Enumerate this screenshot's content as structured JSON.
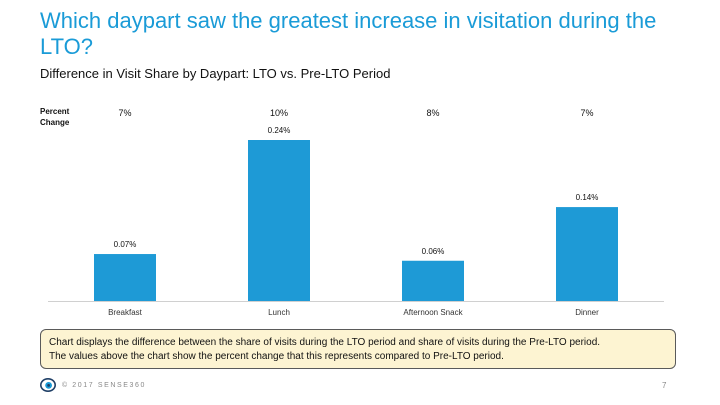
{
  "slide": {
    "title": "Which daypart saw the greatest increase in visitation during the LTO?",
    "subtitle": "Difference in Visit Share by Daypart: LTO vs. Pre-LTO Period",
    "percent_change_label_line1": "Percent",
    "percent_change_label_line2": "Change",
    "note_line1": "Chart displays the difference between the share of visits during the LTO period and share of visits during the Pre-LTO period.",
    "note_line2": "The values above the chart show the percent change that this represents compared to Pre-LTO period.",
    "copyright": "© 2017 SENSE360",
    "page_number": "7",
    "logo_icon": "sense360-eye-icon"
  },
  "colors": {
    "title": "#1a9bd7",
    "bar": "#1e9ad6",
    "note_bg": "#fdf4d2",
    "axis": "#d0d0d0"
  },
  "chart_data": {
    "type": "bar",
    "categories": [
      "Breakfast",
      "Lunch",
      "Afternoon Snack",
      "Dinner"
    ],
    "values": [
      0.07,
      0.24,
      0.06,
      0.14
    ],
    "value_labels": [
      "0.07%",
      "0.24%",
      "0.06%",
      "0.14%"
    ],
    "percent_change": [
      "7%",
      "10%",
      "8%",
      "7%"
    ],
    "title": "Difference in Visit Share by Daypart: LTO vs. Pre-LTO Period",
    "xlabel": "",
    "ylabel": "",
    "ylim": [
      0,
      0.24
    ],
    "grid": false,
    "legend": "none"
  }
}
